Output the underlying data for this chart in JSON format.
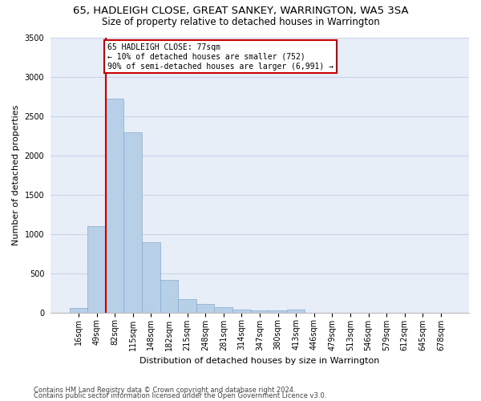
{
  "title": "65, HADLEIGH CLOSE, GREAT SANKEY, WARRINGTON, WA5 3SA",
  "subtitle": "Size of property relative to detached houses in Warrington",
  "xlabel": "Distribution of detached houses by size in Warrington",
  "ylabel": "Number of detached properties",
  "footer_line1": "Contains HM Land Registry data © Crown copyright and database right 2024.",
  "footer_line2": "Contains public sector information licensed under the Open Government Licence v3.0.",
  "categories": [
    "16sqm",
    "49sqm",
    "82sqm",
    "115sqm",
    "148sqm",
    "182sqm",
    "215sqm",
    "248sqm",
    "281sqm",
    "314sqm",
    "347sqm",
    "380sqm",
    "413sqm",
    "446sqm",
    "479sqm",
    "513sqm",
    "546sqm",
    "579sqm",
    "612sqm",
    "645sqm",
    "678sqm"
  ],
  "values": [
    60,
    1100,
    2720,
    2290,
    890,
    415,
    170,
    110,
    65,
    40,
    30,
    25,
    35,
    0,
    0,
    0,
    0,
    0,
    0,
    0,
    0
  ],
  "bar_color": "#b8cfe8",
  "bar_edge_color": "#88aacf",
  "bar_width": 1.0,
  "ylim": [
    0,
    3500
  ],
  "yticks": [
    0,
    500,
    1000,
    1500,
    2000,
    2500,
    3000,
    3500
  ],
  "annotation_text": "65 HADLEIGH CLOSE: 77sqm\n← 10% of detached houses are smaller (752)\n90% of semi-detached houses are larger (6,991) →",
  "annotation_box_color": "#ffffff",
  "annotation_box_edge": "#cc0000",
  "vline_color": "#cc0000",
  "grid_color": "#c8d4e8",
  "bg_color": "#e8eef8",
  "title_fontsize": 9.5,
  "subtitle_fontsize": 8.5,
  "xlabel_fontsize": 8,
  "ylabel_fontsize": 8,
  "tick_fontsize": 7,
  "footer_fontsize": 6,
  "annotation_fontsize": 7
}
